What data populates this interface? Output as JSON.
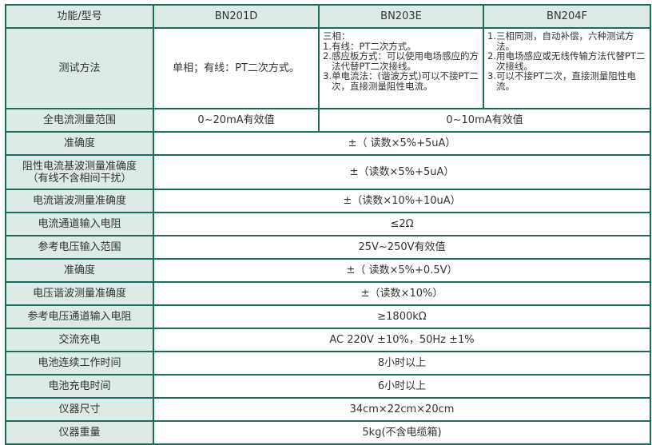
{
  "header": {
    "label": "功能/型号",
    "models": [
      "BN201D",
      "BN203E",
      "BN204F"
    ]
  },
  "test_method": {
    "label": "测试方法",
    "bn201d": "单相；有线：PT二次方式。",
    "bn203e": [
      "三相：",
      "1.有线：PT二次方式。",
      "2.感应板方式：可以使用电场感应的方法代替PT二次接线。",
      "3.单电流法：(谐波方式)可以不接PT二次，直接测量阻性电流。"
    ],
    "bn204f": [
      "1.三相同测，自动补偿，六种测试方法。",
      "2.用电场感应或无线传输方法代替PT二次接线。",
      "3.可以不接PT二次，直接测量阻性电流。"
    ]
  },
  "current_range": {
    "label": "全电流测量范围",
    "bn201d": "0~20mA有效值",
    "others": "0~10mA有效值"
  },
  "rows": [
    {
      "label": "准确度",
      "value": "±（ 读数×5%+5uA）"
    },
    {
      "label": "阻性电流基波测量准确度",
      "label2": "（有线不含相间干扰）",
      "value": "±（读数×5%+5uA）"
    },
    {
      "label": "电流谐波测量准确度",
      "value": "±（读数×10%+10uA）"
    },
    {
      "label": "电流通道输入电阻",
      "value": "≤2Ω"
    },
    {
      "label": "参考电压输入范围",
      "value": "25V~250V有效值"
    },
    {
      "label": "准确度",
      "value": "±（ 读数×5%+0.5V）"
    },
    {
      "label": "电压谐波测量准确度",
      "value": "±（读数×10%）"
    },
    {
      "label": "参考电压通道输入电阻",
      "value": "≥1800kΩ"
    },
    {
      "label": "交流充电",
      "value": "AC 220V ±10%，50Hz  ±1%"
    },
    {
      "label": "电池连续工作时间",
      "value": "8小时以上"
    },
    {
      "label": "电池充电时间",
      "value": "6小时以上"
    },
    {
      "label": "仪器尺寸",
      "value": "34cm×22cm×20cm"
    },
    {
      "label": "仪器重量",
      "value": "5kg(不含电缆箱)"
    }
  ],
  "colors": {
    "border": "#1d6b5b",
    "label_bg": "#dcebe5",
    "text": "#333333"
  }
}
